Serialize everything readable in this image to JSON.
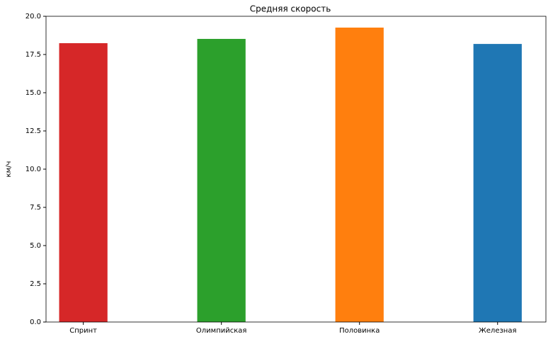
{
  "chart_data": {
    "type": "bar",
    "title": "Средняя скорость",
    "y_label": "км/ч",
    "categories": [
      "Спринт",
      "Олимпийская",
      "Половинка",
      "Железная"
    ],
    "values": [
      18.24,
      18.52,
      19.26,
      18.19
    ],
    "colors": [
      "#d62728",
      "#2ca02c",
      "#ff7f0e",
      "#1f77b4"
    ],
    "ylim": [
      0,
      20
    ],
    "yticks": [
      {
        "value": 0,
        "label": "0.0"
      },
      2.5,
      {
        "value": 5,
        "label": "5.0"
      },
      7.5,
      {
        "value": 10,
        "label": "10.0"
      },
      12.5,
      {
        "value": 15,
        "label": "15.0"
      },
      17.5,
      {
        "value": 20,
        "label": "20.0"
      }
    ],
    "grid": false
  }
}
